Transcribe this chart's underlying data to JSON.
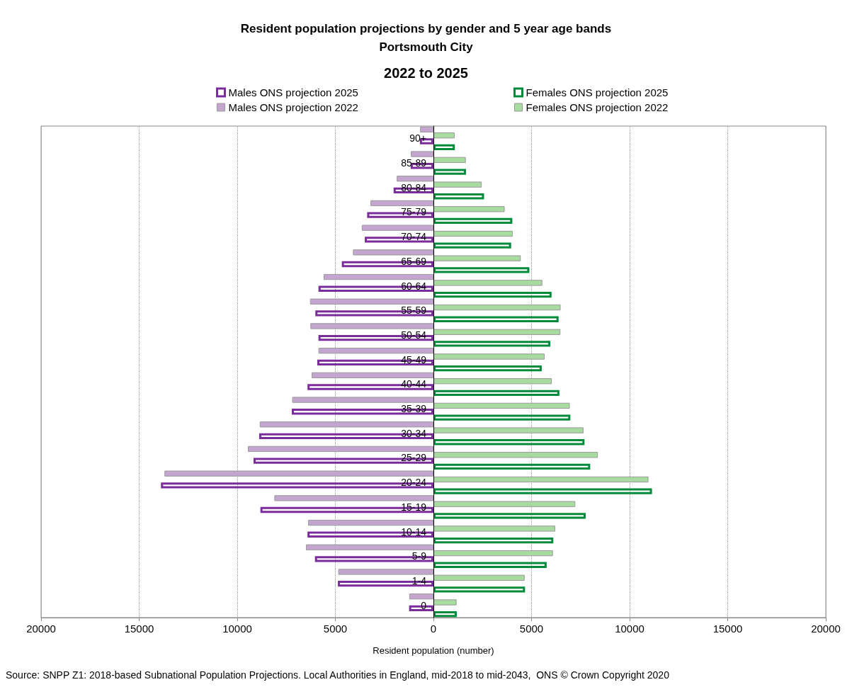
{
  "chart_data": {
    "type": "bar",
    "orientation": "horizontal",
    "title": "Resident population projections by gender and 5 year age bands\nPortsmouth City",
    "subtitle": "2022 to 2025",
    "xlabel": "Resident population (number)",
    "categories": [
      "90+",
      "85-89",
      "80-84",
      "75-79",
      "70-74",
      "65-69",
      "60-64",
      "55-59",
      "50-54",
      "45-49",
      "40-44",
      "35-39",
      "30-34",
      "25-29",
      "20-24",
      "15-19",
      "10-14",
      "5-9",
      "1-4",
      "0"
    ],
    "series": [
      {
        "name": "Males ONS projection 2025",
        "color": "#7b2c9b",
        "line_style": "solid",
        "values": [
          -690,
          -1160,
          -2030,
          -3380,
          -3500,
          -4670,
          -5860,
          -6020,
          -5860,
          -5920,
          -6420,
          -7220,
          -8880,
          -9170,
          -13890,
          -8820,
          -6420,
          -6040,
          -4870,
          -1240
        ]
      },
      {
        "name": "Females ONS projection 2025",
        "color": "#008a3a",
        "line_style": "solid",
        "values": [
          1090,
          1660,
          2580,
          4020,
          3960,
          4890,
          6020,
          6380,
          5960,
          5520,
          6420,
          6980,
          7700,
          7990,
          11140,
          7760,
          6110,
          5770,
          4670,
          1190
        ]
      },
      {
        "name": "Males ONS projection 2022",
        "color": "#c3a5d0",
        "values": [
          -680,
          -1150,
          -1870,
          -3210,
          -3650,
          -4100,
          -5600,
          -6290,
          -6270,
          -5860,
          -6210,
          -7200,
          -8850,
          -9460,
          -13710,
          -8110,
          -6390,
          -6500,
          -4850,
          -1230
        ]
      },
      {
        "name": "Females ONS projection 2022",
        "color": "#a8dba0",
        "values": [
          1080,
          1650,
          2460,
          3630,
          4040,
          4450,
          5550,
          6480,
          6470,
          5670,
          6030,
          6950,
          7650,
          8380,
          10960,
          7230,
          6210,
          6090,
          4650,
          1180
        ]
      }
    ],
    "xlim": [
      -20000,
      20000
    ],
    "xticks": [
      {
        "value": -20000,
        "label": "20000"
      },
      {
        "value": -15000,
        "label": "15000"
      },
      {
        "value": -10000,
        "label": "10000"
      },
      {
        "value": -5000,
        "label": "5000"
      },
      0,
      5000,
      10000,
      15000,
      20000
    ],
    "grid": "x",
    "legend": "top",
    "annotations": [
      "Source: SNPP Z1: 2018-based Subnational Population Projections. Local Authorities in England, mid-2018 to mid-2043,  ONS © Crown Copyright 2020"
    ]
  }
}
